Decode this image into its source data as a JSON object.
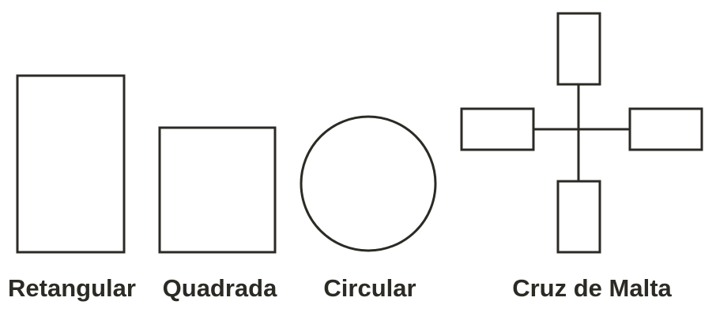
{
  "colors": {
    "stroke": "#2b2a25",
    "text": "#2b2a25",
    "background": "#ffffff"
  },
  "shapes": [
    {
      "id": "retangular",
      "label": "Retangular",
      "kind": "rectangle"
    },
    {
      "id": "quadrada",
      "label": "Quadrada",
      "kind": "square"
    },
    {
      "id": "circular",
      "label": "Circular",
      "kind": "circle"
    },
    {
      "id": "cruz-de-malta",
      "label": "Cruz de Malta",
      "kind": "maltese-cross"
    }
  ]
}
